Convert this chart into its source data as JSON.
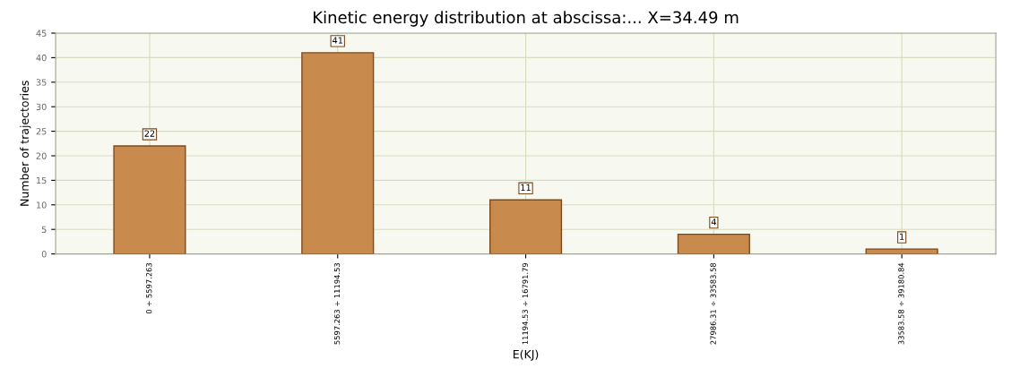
{
  "chart_data": {
    "type": "bar",
    "title": "Kinetic energy distribution at abscissa:... X=34.49 m",
    "xlabel": "E(KJ)",
    "ylabel": "Number of trajectories",
    "categories": [
      "0 ÷ 5597.263",
      "5597.263 ÷ 11194.53",
      "11194.53 ÷ 16791.79",
      "27986.31 ÷ 33583.58",
      "33583.58 ÷ 39180.84"
    ],
    "values": [
      22,
      41,
      11,
      4,
      1
    ],
    "color": "#c98a4e",
    "ylim": [
      0,
      45
    ],
    "yticks": [
      0,
      5,
      10,
      15,
      20,
      25,
      30,
      35,
      40,
      45
    ],
    "grid": true,
    "data_labels": true
  }
}
